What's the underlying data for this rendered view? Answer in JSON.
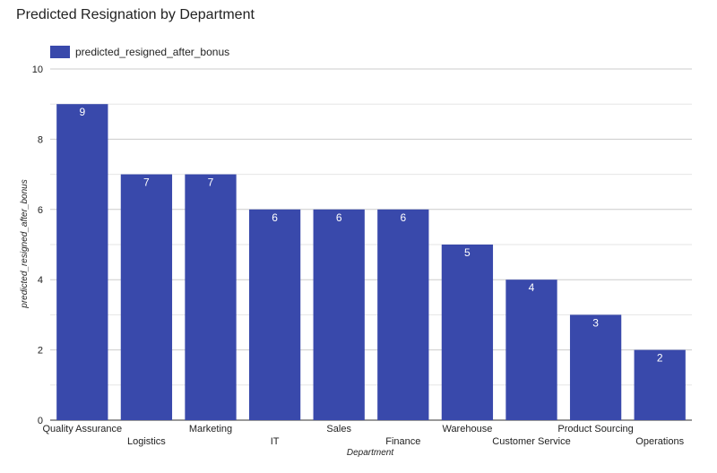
{
  "chart_data": {
    "type": "bar",
    "title": "Predicted Resignation by Department",
    "xlabel": "Department",
    "ylabel": "predicted_resigned_after_bonus",
    "categories": [
      "Quality Assurance",
      "Logistics",
      "Marketing",
      "IT",
      "Sales",
      "Finance",
      "Warehouse",
      "Customer Service",
      "Product Sourcing",
      "Operations"
    ],
    "series": [
      {
        "name": "predicted_resigned_after_bonus",
        "values": [
          9,
          7,
          7,
          6,
          6,
          6,
          5,
          4,
          3,
          2
        ],
        "color": "#3949ab"
      }
    ],
    "ylim": [
      0,
      10
    ],
    "yticks": [
      0,
      2,
      4,
      6,
      8,
      10
    ],
    "grid": true,
    "legend": "top-left",
    "data_labels": true
  }
}
